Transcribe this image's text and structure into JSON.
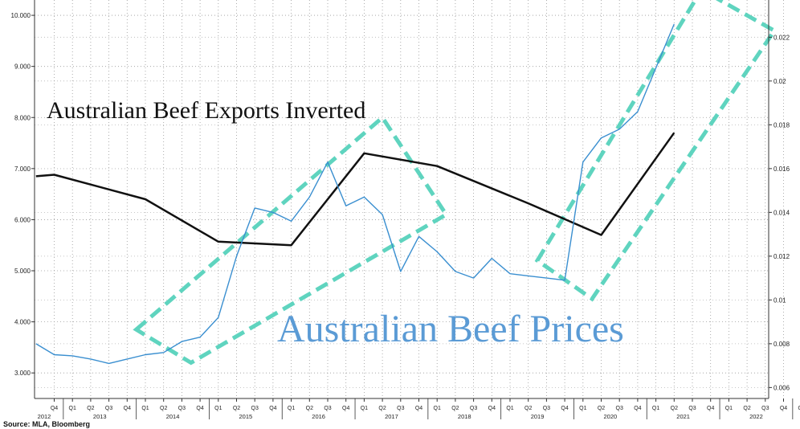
{
  "chart_data": {
    "type": "line",
    "annotations": {
      "exports_title": "Australian Beef Exports Inverted",
      "prices_title": "Australian Beef Prices"
    },
    "source": "Source: MLA, Bloomberg",
    "left_axis": {
      "ticks": [
        "3.000",
        "4.000",
        "5.000",
        "6.000",
        "7.000",
        "8.000",
        "9.000",
        "10.000"
      ],
      "range": [
        2.5,
        10.3
      ]
    },
    "right_axis": {
      "ticks": [
        "0.006",
        "0.008",
        "0.01",
        "0.012",
        "0.014",
        "0.016",
        "0.018",
        "0.02",
        "0.022"
      ],
      "range": [
        0.0055,
        0.0237
      ]
    },
    "x_axis": {
      "quarter_labels": [
        "Q4",
        "Q1",
        "Q2",
        "Q3",
        "Q4",
        "Q1",
        "Q2",
        "Q3",
        "Q4",
        "Q1",
        "Q2",
        "Q3",
        "Q4",
        "Q1",
        "Q2",
        "Q3",
        "Q4",
        "Q1",
        "Q2",
        "Q3",
        "Q4",
        "Q1",
        "Q2",
        "Q3",
        "Q4",
        "Q1",
        "Q2",
        "Q3",
        "Q4",
        "Q1",
        "Q2",
        "Q3",
        "Q4",
        "Q1",
        "Q2",
        "Q3",
        "Q4",
        "Q1",
        "Q2",
        "Q3",
        "Q4",
        "Q1",
        "Q2",
        "Q3"
      ],
      "year_labels": [
        {
          "label": "2012",
          "q": 0
        },
        {
          "label": "2013",
          "q": 2.5
        },
        {
          "label": "2014",
          "q": 6.5
        },
        {
          "label": "2015",
          "q": 10.5
        },
        {
          "label": "2016",
          "q": 14.5
        },
        {
          "label": "2017",
          "q": 18.5
        },
        {
          "label": "2018",
          "q": 22.5
        },
        {
          "label": "2019",
          "q": 26.5
        },
        {
          "label": "2020",
          "q": 30.5
        },
        {
          "label": "2021",
          "q": 34.5
        },
        {
          "label": "2022",
          "q": 38.5
        }
      ]
    },
    "series": [
      {
        "axis": "left",
        "color": "#111111",
        "points": [
          [
            -1,
            6.85
          ],
          [
            0,
            6.88
          ],
          [
            5,
            6.4
          ],
          [
            9,
            5.57
          ],
          [
            13,
            5.5
          ],
          [
            17,
            7.3
          ],
          [
            21,
            7.05
          ],
          [
            26,
            6.32
          ],
          [
            30,
            5.7
          ],
          [
            34,
            7.7
          ]
        ]
      },
      {
        "axis": "right",
        "color": "#3a8fd0",
        "points": [
          [
            -1,
            0.008
          ],
          [
            0,
            0.0075
          ],
          [
            1,
            0.00745
          ],
          [
            2,
            0.0073
          ],
          [
            3,
            0.0071
          ],
          [
            4,
            0.0073
          ],
          [
            5,
            0.0075
          ],
          [
            6,
            0.0076
          ],
          [
            7,
            0.0081
          ],
          [
            8,
            0.0083
          ],
          [
            9,
            0.0092
          ],
          [
            10,
            0.012
          ],
          [
            11,
            0.0142
          ],
          [
            12,
            0.014
          ],
          [
            13,
            0.0136
          ],
          [
            14,
            0.0147
          ],
          [
            15,
            0.0163
          ],
          [
            16,
            0.0143
          ],
          [
            17,
            0.0147
          ],
          [
            18,
            0.0139
          ],
          [
            19,
            0.0113
          ],
          [
            20,
            0.0129
          ],
          [
            21,
            0.0122
          ],
          [
            22,
            0.0113
          ],
          [
            23,
            0.011
          ],
          [
            24,
            0.0119
          ],
          [
            25,
            0.0112
          ],
          [
            26,
            0.0111
          ],
          [
            27,
            0.011
          ],
          [
            28,
            0.0109
          ],
          [
            29,
            0.0163
          ],
          [
            30,
            0.0174
          ],
          [
            31,
            0.0178
          ],
          [
            32,
            0.0186
          ],
          [
            33,
            0.0206
          ],
          [
            34,
            0.0226
          ]
        ]
      }
    ],
    "highlight_boxes": [
      {
        "color": "#5fd4bf",
        "corners": [
          [
            4.5,
            3.85
          ],
          [
            18,
            8.0
          ],
          [
            21.5,
            6.1
          ],
          [
            7.5,
            3.2
          ]
        ]
      },
      {
        "color": "#5fd4bf",
        "corners": [
          [
            26.5,
            5.2
          ],
          [
            35.5,
            10.5
          ],
          [
            39.5,
            9.7
          ],
          [
            29.5,
            4.45
          ]
        ]
      }
    ]
  }
}
